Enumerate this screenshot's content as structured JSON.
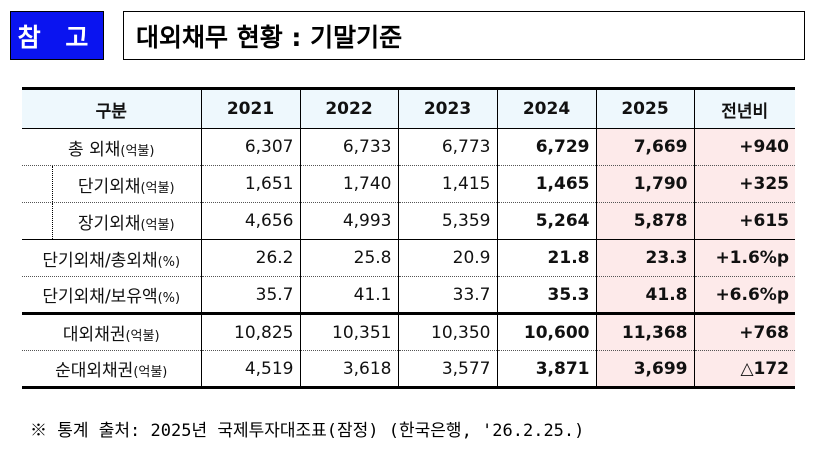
{
  "badge": "참 고",
  "title": "대외채무 현황 : 기말기준",
  "table": {
    "headers": [
      "구분",
      "2021",
      "2022",
      "2023",
      "2024",
      "2025",
      "전년비"
    ],
    "rows": [
      {
        "label": "총 외채",
        "unit": "(억불)",
        "values": [
          "6,307",
          "6,733",
          "6,773",
          "6,729",
          "7,669",
          "+940"
        ]
      },
      {
        "label": "단기외채",
        "unit": "(억불)",
        "values": [
          "1,651",
          "1,740",
          "1,415",
          "1,465",
          "1,790",
          "+325"
        ]
      },
      {
        "label": "장기외채",
        "unit": "(억불)",
        "values": [
          "4,656",
          "4,993",
          "5,359",
          "5,264",
          "5,878",
          "+615"
        ]
      },
      {
        "label": "단기외채/총외채",
        "unit": "(%)",
        "values": [
          "26.2",
          "25.8",
          "20.9",
          "21.8",
          "23.3",
          "+1.6%p"
        ]
      },
      {
        "label": "단기외채/보유액",
        "unit": "(%)",
        "values": [
          "35.7",
          "41.1",
          "33.7",
          "35.3",
          "41.8",
          "+6.6%p"
        ]
      },
      {
        "label": "대외채권",
        "unit": "(억불)",
        "values": [
          "10,825",
          "10,351",
          "10,350",
          "10,600",
          "11,368",
          "+768"
        ]
      },
      {
        "label": "순대외채권",
        "unit": "(억불)",
        "values": [
          "4,519",
          "3,618",
          "3,577",
          "3,871",
          "3,699",
          "△172"
        ]
      }
    ]
  },
  "note": "※ 통계 출처: 2025년 국제투자대조표(잠정) (한국은행, '26.2.25.)",
  "colors": {
    "badge": "#0a14f0",
    "header_bg": "#eef8fd",
    "highlight": "#fdeaea"
  }
}
